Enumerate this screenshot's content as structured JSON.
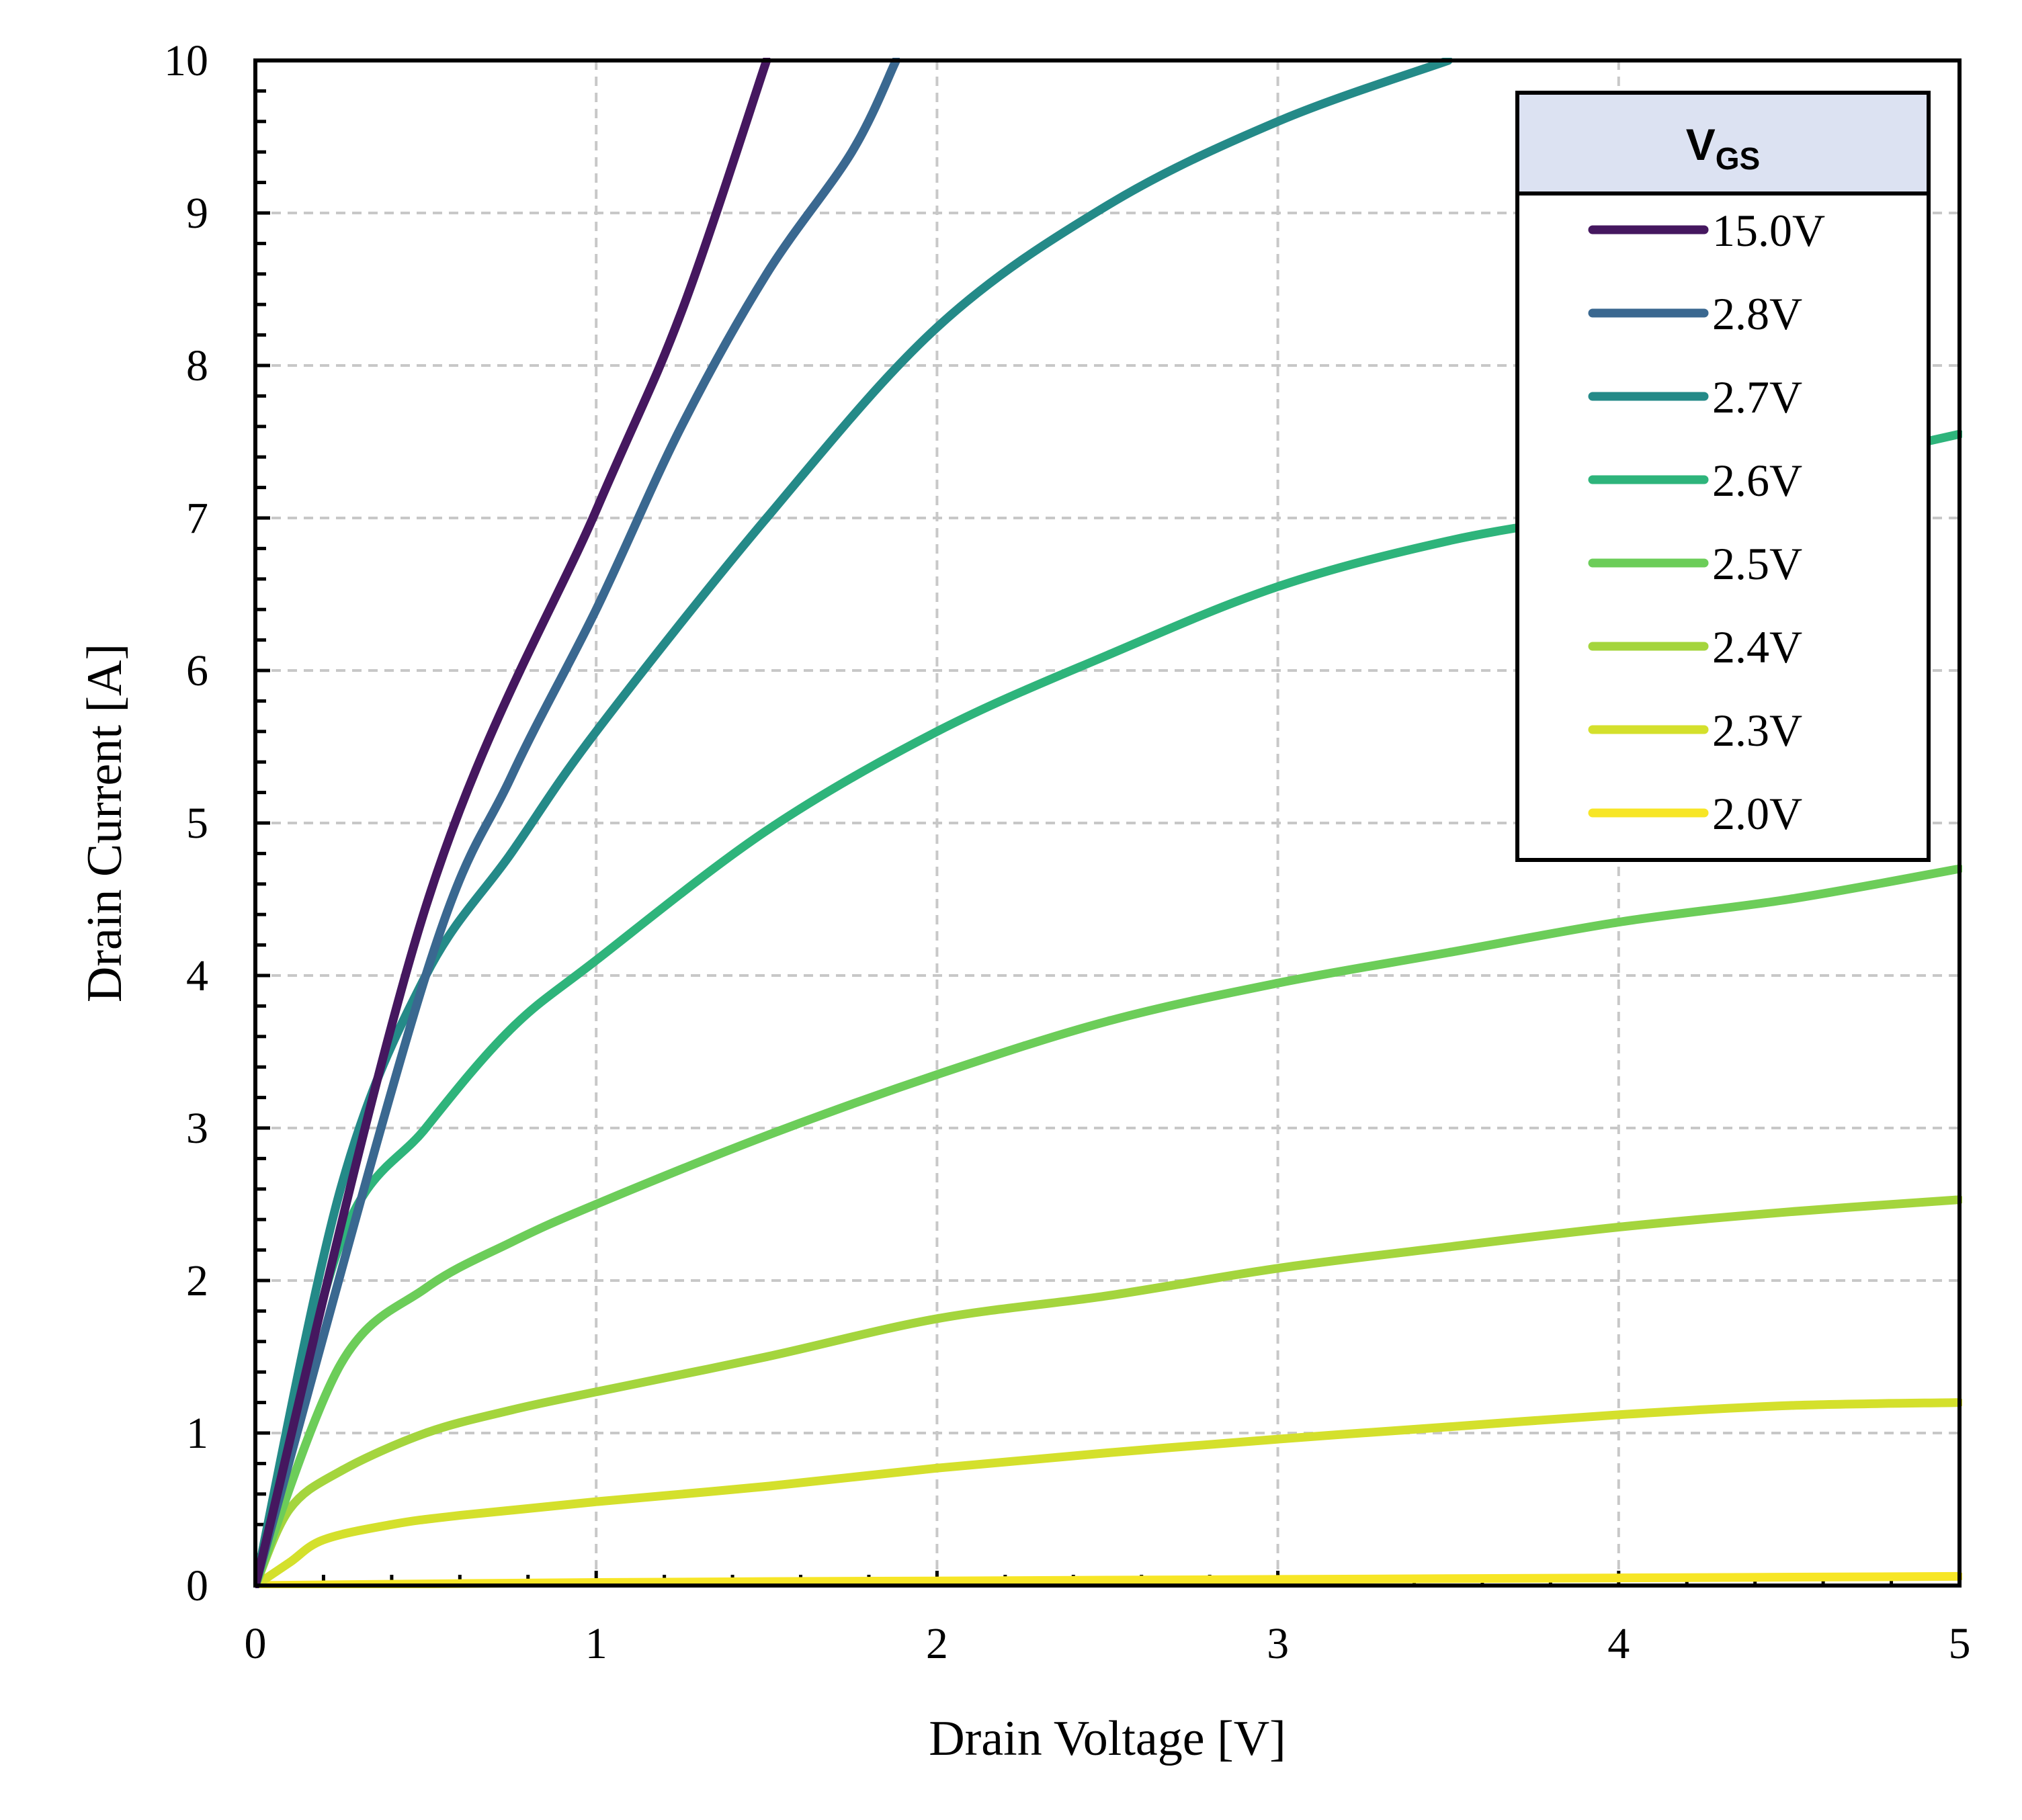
{
  "chart_data": {
    "type": "line",
    "title": "",
    "xlabel": "Drain Voltage [V]",
    "ylabel": "Drain Current [A]",
    "xlim": [
      0,
      5
    ],
    "ylim": [
      0,
      10
    ],
    "xticks": [
      "0",
      "1",
      "2",
      "3",
      "4",
      "5"
    ],
    "yticks": [
      "0",
      "1",
      "2",
      "3",
      "4",
      "5",
      "6",
      "7",
      "8",
      "9",
      "10"
    ],
    "grid": true,
    "legend": {
      "title_main": "V",
      "title_sub": "GS",
      "placement": "top-right"
    },
    "series": [
      {
        "name": "15.0V",
        "color": "#45175f",
        "points": [
          [
            0,
            0
          ],
          [
            0.5,
            4.45
          ],
          [
            1.0,
            7.05
          ],
          [
            1.25,
            8.35
          ],
          [
            1.5,
            10.0
          ]
        ]
      },
      {
        "name": "2.8V",
        "color": "#3a6890",
        "points": [
          [
            0,
            0
          ],
          [
            0.5,
            4.0
          ],
          [
            0.75,
            5.3
          ],
          [
            1.0,
            6.4
          ],
          [
            1.25,
            7.6
          ],
          [
            1.5,
            8.6
          ],
          [
            1.75,
            9.4
          ],
          [
            1.88,
            10.0
          ]
        ]
      },
      {
        "name": "2.7V",
        "color": "#248a88",
        "points": [
          [
            0,
            0
          ],
          [
            0.25,
            2.6
          ],
          [
            0.5,
            4.0
          ],
          [
            0.75,
            4.8
          ],
          [
            1.0,
            5.6
          ],
          [
            1.5,
            7.0
          ],
          [
            2.0,
            8.25
          ],
          [
            2.5,
            9.05
          ],
          [
            3.0,
            9.6
          ],
          [
            3.5,
            10.0
          ]
        ]
      },
      {
        "name": "2.6V",
        "color": "#2eb47b",
        "points": [
          [
            0,
            0
          ],
          [
            0.25,
            2.25
          ],
          [
            0.5,
            3.0
          ],
          [
            0.75,
            3.65
          ],
          [
            1.0,
            4.1
          ],
          [
            1.5,
            4.95
          ],
          [
            2.0,
            5.6
          ],
          [
            2.5,
            6.1
          ],
          [
            3.0,
            6.55
          ],
          [
            3.5,
            6.85
          ],
          [
            4.0,
            7.05
          ],
          [
            4.5,
            7.3
          ],
          [
            5.0,
            7.55
          ]
        ]
      },
      {
        "name": "2.5V",
        "color": "#6ccd59",
        "points": [
          [
            0,
            0
          ],
          [
            0.25,
            1.45
          ],
          [
            0.5,
            1.95
          ],
          [
            0.75,
            2.25
          ],
          [
            1.0,
            2.5
          ],
          [
            1.5,
            2.95
          ],
          [
            2.0,
            3.35
          ],
          [
            2.5,
            3.7
          ],
          [
            3.0,
            3.95
          ],
          [
            3.5,
            4.15
          ],
          [
            4.0,
            4.35
          ],
          [
            4.5,
            4.5
          ],
          [
            5.0,
            4.7
          ]
        ]
      },
      {
        "name": "2.4V",
        "color": "#a4d53d",
        "points": [
          [
            0,
            0
          ],
          [
            0.1,
            0.5
          ],
          [
            0.25,
            0.75
          ],
          [
            0.5,
            1.0
          ],
          [
            0.75,
            1.15
          ],
          [
            1.0,
            1.27
          ],
          [
            1.5,
            1.5
          ],
          [
            2.0,
            1.75
          ],
          [
            2.5,
            1.9
          ],
          [
            3.0,
            2.08
          ],
          [
            3.5,
            2.22
          ],
          [
            4.0,
            2.35
          ],
          [
            4.5,
            2.45
          ],
          [
            5.0,
            2.53
          ]
        ]
      },
      {
        "name": "2.3V",
        "color": "#d4e02c",
        "points": [
          [
            0,
            0
          ],
          [
            0.1,
            0.15
          ],
          [
            0.2,
            0.3
          ],
          [
            0.4,
            0.4
          ],
          [
            0.6,
            0.46
          ],
          [
            1.0,
            0.55
          ],
          [
            1.5,
            0.65
          ],
          [
            2.0,
            0.77
          ],
          [
            2.5,
            0.87
          ],
          [
            3.0,
            0.96
          ],
          [
            3.5,
            1.04
          ],
          [
            4.0,
            1.12
          ],
          [
            4.5,
            1.18
          ],
          [
            5.0,
            1.2
          ]
        ]
      },
      {
        "name": "2.0V",
        "color": "#f7e626",
        "points": [
          [
            0,
            0
          ],
          [
            1.0,
            0.02
          ],
          [
            2.0,
            0.03
          ],
          [
            3.0,
            0.04
          ],
          [
            4.0,
            0.05
          ],
          [
            5.0,
            0.06
          ]
        ]
      }
    ]
  }
}
